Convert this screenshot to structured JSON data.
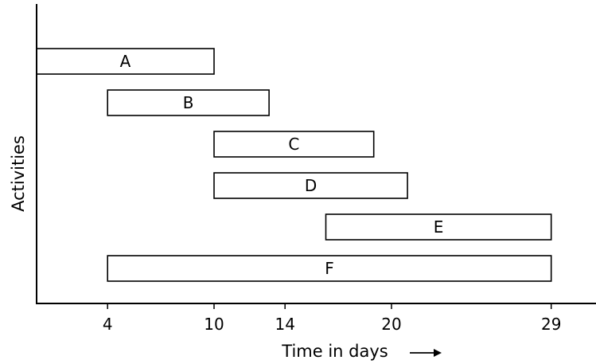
{
  "chart_data": {
    "type": "bar",
    "orientation": "horizontal",
    "chart_style": "gantt",
    "title": "",
    "xlabel": "Time in days",
    "ylabel": "Activities",
    "x_ticks": [
      4,
      10,
      14,
      20,
      29
    ],
    "xlim": [
      0,
      32
    ],
    "grid": false,
    "legend": "none",
    "tasks": [
      {
        "name": "A",
        "start": 0,
        "end": 10.0
      },
      {
        "name": "B",
        "start": 4,
        "end": 13.1
      },
      {
        "name": "C",
        "start": 10,
        "end": 19.0
      },
      {
        "name": "D",
        "start": 10,
        "end": 20.9
      },
      {
        "name": "E",
        "start": 16.3,
        "end": 29
      },
      {
        "name": "F",
        "start": 4,
        "end": 29
      }
    ]
  }
}
